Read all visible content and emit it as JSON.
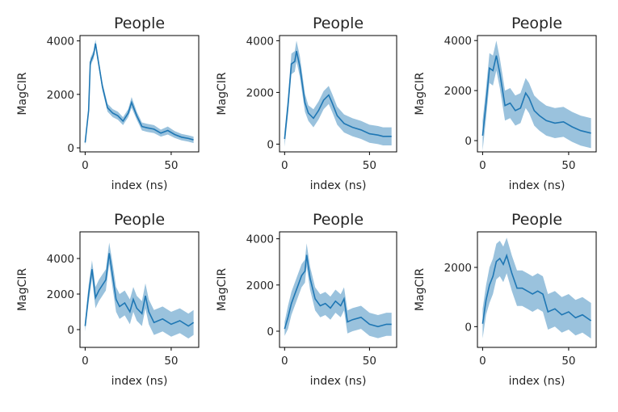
{
  "figure": {
    "series_color": "#1f77b4",
    "band_color": "#1f77b4"
  },
  "chart_data": [
    {
      "type": "area",
      "title": "People",
      "xlabel": "index (ns)",
      "ylabel": "MagCIR",
      "xlim": [
        -3,
        66
      ],
      "ylim": [
        -150,
        4200
      ],
      "xticks": [
        0,
        50
      ],
      "yticks": [
        0,
        2000,
        4000
      ],
      "grid": false,
      "series": [
        {
          "x": [
            0,
            2,
            3,
            5,
            6,
            7,
            10,
            13,
            16,
            19,
            22,
            25,
            27,
            30,
            33,
            36,
            40,
            44,
            48,
            52,
            56,
            60,
            63
          ],
          "mean": [
            200,
            1400,
            3200,
            3500,
            3900,
            3500,
            2300,
            1500,
            1300,
            1200,
            1000,
            1300,
            1700,
            1200,
            800,
            750,
            700,
            550,
            650,
            500,
            400,
            350,
            300
          ],
          "lower": [
            100,
            1250,
            3050,
            3350,
            3750,
            3350,
            2150,
            1350,
            1150,
            1050,
            850,
            1150,
            1500,
            1050,
            650,
            600,
            550,
            420,
            500,
            370,
            280,
            230,
            180
          ],
          "upper": [
            300,
            1550,
            3350,
            3650,
            4050,
            3650,
            2450,
            1650,
            1450,
            1350,
            1150,
            1450,
            1900,
            1350,
            950,
            900,
            850,
            680,
            800,
            630,
            520,
            470,
            420
          ]
        }
      ]
    },
    {
      "type": "area",
      "title": "People",
      "xlabel": "index (ns)",
      "ylabel": "MagCIR",
      "xlim": [
        -3,
        66
      ],
      "ylim": [
        -300,
        4200
      ],
      "xticks": [
        0,
        50
      ],
      "yticks": [
        0,
        2000,
        4000
      ],
      "grid": false,
      "series": [
        {
          "x": [
            0,
            2,
            4,
            6,
            7,
            9,
            12,
            14,
            17,
            20,
            23,
            26,
            28,
            31,
            35,
            40,
            45,
            50,
            55,
            58,
            63
          ],
          "mean": [
            200,
            1500,
            3100,
            3200,
            3600,
            3000,
            1600,
            1200,
            1000,
            1300,
            1700,
            1900,
            1600,
            1100,
            800,
            650,
            550,
            400,
            350,
            300,
            300
          ],
          "lower": [
            -100,
            1150,
            2700,
            2800,
            3200,
            2600,
            1250,
            900,
            650,
            950,
            1350,
            1550,
            1250,
            750,
            450,
            300,
            200,
            50,
            0,
            -50,
            -50
          ],
          "upper": [
            500,
            1850,
            3500,
            3600,
            4000,
            3400,
            1950,
            1500,
            1350,
            1650,
            2050,
            2250,
            1950,
            1450,
            1150,
            1000,
            900,
            750,
            700,
            650,
            650
          ]
        }
      ]
    },
    {
      "type": "area",
      "title": "People",
      "xlabel": "index (ns)",
      "ylabel": "MagCIR",
      "xlim": [
        -3,
        66
      ],
      "ylim": [
        -450,
        4200
      ],
      "xticks": [
        0,
        50
      ],
      "yticks": [
        0,
        2000,
        4000
      ],
      "grid": false,
      "series": [
        {
          "x": [
            0,
            2,
            4,
            6,
            8,
            10,
            13,
            16,
            19,
            22,
            25,
            27,
            30,
            33,
            37,
            42,
            47,
            52,
            57,
            63
          ],
          "mean": [
            200,
            1500,
            2900,
            2800,
            3400,
            2700,
            1400,
            1500,
            1200,
            1300,
            1900,
            1700,
            1200,
            1000,
            800,
            700,
            750,
            550,
            400,
            300
          ],
          "lower": [
            -400,
            900,
            2300,
            2200,
            2800,
            2100,
            800,
            900,
            600,
            700,
            1300,
            1100,
            600,
            400,
            200,
            100,
            150,
            -50,
            -200,
            -300
          ],
          "upper": [
            800,
            2100,
            3500,
            3400,
            4000,
            3300,
            2000,
            2100,
            1800,
            1900,
            2500,
            2300,
            1800,
            1600,
            1400,
            1300,
            1350,
            1150,
            1000,
            900
          ]
        }
      ]
    },
    {
      "type": "area",
      "title": "People",
      "xlabel": "index (ns)",
      "ylabel": "MagCIR",
      "xlim": [
        -3,
        66
      ],
      "ylim": [
        -1000,
        5500
      ],
      "xticks": [
        0,
        50
      ],
      "yticks": [
        0,
        2000,
        4000
      ],
      "grid": false,
      "series": [
        {
          "x": [
            0,
            2,
            4,
            6,
            8,
            10,
            12,
            14,
            16,
            18,
            20,
            23,
            26,
            28,
            30,
            33,
            35,
            37,
            40,
            45,
            50,
            55,
            60,
            63
          ],
          "mean": [
            200,
            2000,
            3400,
            1800,
            2200,
            2500,
            2800,
            4300,
            3000,
            1700,
            1300,
            1500,
            1000,
            1700,
            1200,
            900,
            1900,
            1000,
            400,
            600,
            300,
            500,
            200,
            400
          ],
          "lower": [
            -100,
            1500,
            2900,
            1200,
            1600,
            1900,
            2200,
            3700,
            2300,
            1000,
            600,
            800,
            300,
            1000,
            500,
            200,
            1200,
            300,
            -300,
            -100,
            -400,
            -200,
            -500,
            -300
          ],
          "upper": [
            500,
            2500,
            3900,
            2400,
            2800,
            3100,
            3400,
            4900,
            3700,
            2400,
            2000,
            2200,
            1700,
            2400,
            1900,
            1600,
            2600,
            1700,
            1100,
            1300,
            1000,
            1200,
            900,
            1100
          ]
        }
      ]
    },
    {
      "type": "area",
      "title": "People",
      "xlabel": "index (ns)",
      "ylabel": "MagCIR",
      "xlim": [
        -3,
        66
      ],
      "ylim": [
        -700,
        4300
      ],
      "xticks": [
        0,
        50
      ],
      "yticks": [
        0,
        2000,
        4000
      ],
      "grid": false,
      "series": [
        {
          "x": [
            0,
            2,
            4,
            6,
            8,
            10,
            12,
            13,
            15,
            18,
            21,
            24,
            27,
            30,
            33,
            35,
            37,
            40,
            45,
            50,
            55,
            60,
            63
          ],
          "mean": [
            100,
            600,
            1200,
            1600,
            2000,
            2400,
            2600,
            3300,
            2300,
            1400,
            1100,
            1200,
            1000,
            1300,
            1100,
            1400,
            400,
            500,
            600,
            300,
            200,
            300,
            300
          ],
          "lower": [
            -200,
            100,
            700,
            1100,
            1500,
            1900,
            2100,
            2800,
            1800,
            900,
            600,
            700,
            500,
            800,
            600,
            900,
            -100,
            0,
            100,
            -200,
            -300,
            -200,
            -200
          ],
          "upper": [
            400,
            1100,
            1700,
            2100,
            2500,
            2900,
            3100,
            3800,
            2800,
            1900,
            1600,
            1700,
            1500,
            1800,
            1600,
            1900,
            900,
            1000,
            1100,
            800,
            700,
            800,
            800
          ]
        }
      ]
    },
    {
      "type": "area",
      "title": "People",
      "xlabel": "index (ns)",
      "ylabel": "MagCIR",
      "xlim": [
        -3,
        66
      ],
      "ylim": [
        -700,
        3200
      ],
      "xticks": [
        0,
        50
      ],
      "yticks": [
        0,
        2000
      ],
      "grid": false,
      "series": [
        {
          "x": [
            0,
            2,
            4,
            6,
            8,
            10,
            12,
            14,
            17,
            20,
            23,
            26,
            29,
            32,
            35,
            38,
            42,
            46,
            50,
            54,
            58,
            63
          ],
          "mean": [
            100,
            900,
            1400,
            1700,
            2200,
            2300,
            2100,
            2400,
            1800,
            1300,
            1300,
            1200,
            1100,
            1200,
            1100,
            500,
            600,
            400,
            500,
            300,
            400,
            200
          ],
          "lower": [
            -400,
            400,
            800,
            1100,
            1600,
            1700,
            1500,
            1800,
            1200,
            700,
            700,
            600,
            500,
            600,
            500,
            -100,
            0,
            -200,
            -100,
            -300,
            -200,
            -400
          ],
          "upper": [
            600,
            1400,
            2000,
            2300,
            2800,
            2900,
            2700,
            3000,
            2400,
            1900,
            1900,
            1800,
            1700,
            1800,
            1700,
            1100,
            1200,
            1000,
            1100,
            900,
            1000,
            800
          ]
        }
      ]
    }
  ]
}
